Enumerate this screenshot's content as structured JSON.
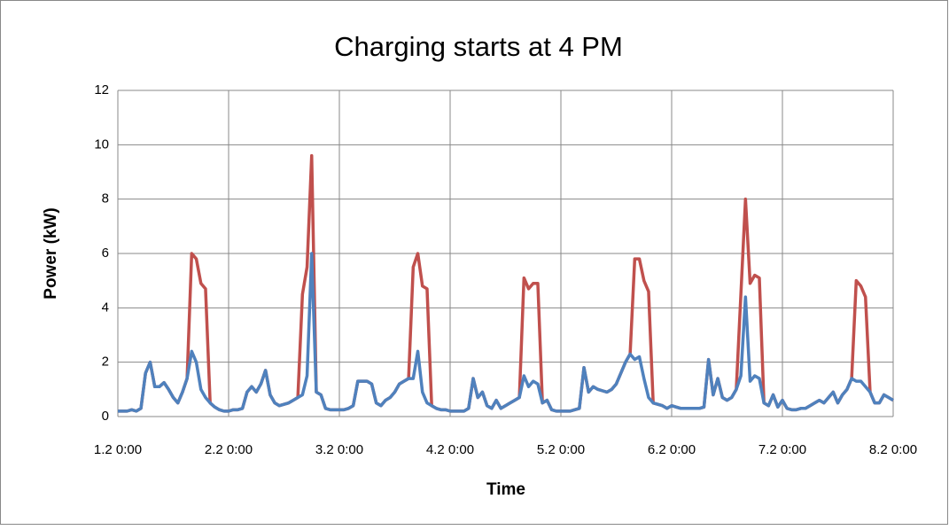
{
  "chart_data": {
    "type": "line",
    "title": "Charging starts at 4 PM",
    "xlabel": "Time",
    "ylabel": "Power (kW)",
    "xlim": [
      0,
      168
    ],
    "ylim": [
      0,
      12
    ],
    "yticks": [
      0,
      2,
      4,
      6,
      8,
      10,
      12
    ],
    "xticks": [
      {
        "value": 0,
        "label": "1.2 0:00"
      },
      {
        "value": 24,
        "label": "2.2 0:00"
      },
      {
        "value": 48,
        "label": "3.2 0:00"
      },
      {
        "value": 72,
        "label": "4.2 0:00"
      },
      {
        "value": 96,
        "label": "5.2 0:00"
      },
      {
        "value": 120,
        "label": "6.2 0:00"
      },
      {
        "value": 144,
        "label": "7.2 0:00"
      },
      {
        "value": 168,
        "label": "8.2 0:00"
      }
    ],
    "grid": true,
    "x": [
      0,
      1,
      2,
      3,
      4,
      5,
      6,
      7,
      8,
      9,
      10,
      11,
      12,
      13,
      14,
      15,
      16,
      17,
      18,
      19,
      20,
      21,
      22,
      23,
      24,
      25,
      26,
      27,
      28,
      29,
      30,
      31,
      32,
      33,
      34,
      35,
      36,
      37,
      38,
      39,
      40,
      41,
      42,
      43,
      44,
      45,
      46,
      47,
      48,
      49,
      50,
      51,
      52,
      53,
      54,
      55,
      56,
      57,
      58,
      59,
      60,
      61,
      62,
      63,
      64,
      65,
      66,
      67,
      68,
      69,
      70,
      71,
      72,
      73,
      74,
      75,
      76,
      77,
      78,
      79,
      80,
      81,
      82,
      83,
      84,
      85,
      86,
      87,
      88,
      89,
      90,
      91,
      92,
      93,
      94,
      95,
      96,
      97,
      98,
      99,
      100,
      101,
      102,
      103,
      104,
      105,
      106,
      107,
      108,
      109,
      110,
      111,
      112,
      113,
      114,
      115,
      116,
      117,
      118,
      119,
      120,
      121,
      122,
      123,
      124,
      125,
      126,
      127,
      128,
      129,
      130,
      131,
      132,
      133,
      134,
      135,
      136,
      137,
      138,
      139,
      140,
      141,
      142,
      143,
      144,
      145,
      146,
      147,
      148,
      149,
      150,
      151,
      152,
      153,
      154,
      155,
      156,
      157,
      158,
      159,
      160,
      161,
      162,
      163,
      164,
      165,
      166,
      167,
      168
    ],
    "series": [
      {
        "color": "#c0504d",
        "values": [
          0.2,
          0.2,
          0.2,
          0.25,
          0.2,
          0.3,
          1.6,
          2.0,
          1.1,
          1.1,
          1.25,
          1.0,
          0.7,
          0.5,
          0.9,
          1.4,
          6.0,
          5.8,
          4.9,
          4.7,
          0.5,
          0.35,
          0.25,
          0.2,
          0.2,
          0.25,
          0.25,
          0.3,
          0.9,
          1.1,
          0.9,
          1.2,
          1.7,
          0.8,
          0.5,
          0.4,
          0.45,
          0.5,
          0.6,
          0.7,
          4.5,
          5.5,
          9.6,
          0.9,
          0.8,
          0.3,
          0.25,
          0.25,
          0.25,
          0.25,
          0.3,
          0.4,
          1.3,
          1.3,
          1.3,
          1.2,
          0.5,
          0.4,
          0.6,
          0.7,
          0.9,
          1.2,
          1.3,
          1.4,
          5.5,
          6.0,
          4.8,
          4.7,
          0.4,
          0.3,
          0.25,
          0.25,
          0.2,
          0.2,
          0.2,
          0.2,
          0.3,
          1.4,
          0.7,
          0.9,
          0.4,
          0.3,
          0.6,
          0.3,
          0.4,
          0.5,
          0.6,
          0.7,
          5.1,
          4.7,
          4.9,
          4.9,
          0.5,
          0.6,
          0.25,
          0.2,
          0.2,
          0.2,
          0.2,
          0.25,
          0.3,
          1.8,
          0.9,
          1.1,
          1.0,
          0.95,
          0.9,
          1.0,
          1.2,
          1.6,
          2.0,
          2.3,
          5.8,
          5.8,
          5.0,
          4.6,
          0.5,
          0.45,
          0.4,
          0.3,
          0.4,
          0.35,
          0.3,
          0.3,
          0.3,
          0.3,
          0.3,
          0.35,
          2.1,
          0.8,
          1.4,
          0.7,
          0.6,
          0.7,
          1.0,
          4.5,
          8.0,
          4.9,
          5.2,
          5.1,
          0.5,
          0.4,
          0.8,
          0.35,
          0.6,
          0.3,
          0.25,
          0.25,
          0.3,
          0.3,
          0.4,
          0.5,
          0.6,
          0.5,
          0.7,
          0.9,
          0.5,
          0.8,
          1.0,
          1.4,
          5.0,
          4.8,
          4.4,
          0.9,
          0.5,
          0.5,
          0.8,
          0.7,
          0.6
        ]
      },
      {
        "color": "#4f81bd",
        "values": [
          0.2,
          0.2,
          0.2,
          0.25,
          0.2,
          0.3,
          1.6,
          2.0,
          1.1,
          1.1,
          1.25,
          1.0,
          0.7,
          0.5,
          0.9,
          1.4,
          2.4,
          2.0,
          1.0,
          0.7,
          0.5,
          0.35,
          0.25,
          0.2,
          0.2,
          0.25,
          0.25,
          0.3,
          0.9,
          1.1,
          0.9,
          1.2,
          1.7,
          0.8,
          0.5,
          0.4,
          0.45,
          0.5,
          0.6,
          0.7,
          0.8,
          1.5,
          6.0,
          0.9,
          0.8,
          0.3,
          0.25,
          0.25,
          0.25,
          0.25,
          0.3,
          0.4,
          1.3,
          1.3,
          1.3,
          1.2,
          0.5,
          0.4,
          0.6,
          0.7,
          0.9,
          1.2,
          1.3,
          1.4,
          1.4,
          2.4,
          0.9,
          0.5,
          0.4,
          0.3,
          0.25,
          0.25,
          0.2,
          0.2,
          0.2,
          0.2,
          0.3,
          1.4,
          0.7,
          0.9,
          0.4,
          0.3,
          0.6,
          0.3,
          0.4,
          0.5,
          0.6,
          0.7,
          1.5,
          1.1,
          1.3,
          1.2,
          0.5,
          0.6,
          0.25,
          0.2,
          0.2,
          0.2,
          0.2,
          0.25,
          0.3,
          1.8,
          0.9,
          1.1,
          1.0,
          0.95,
          0.9,
          1.0,
          1.2,
          1.6,
          2.0,
          2.3,
          2.1,
          2.2,
          1.4,
          0.7,
          0.5,
          0.45,
          0.4,
          0.3,
          0.4,
          0.35,
          0.3,
          0.3,
          0.3,
          0.3,
          0.3,
          0.35,
          2.1,
          0.8,
          1.4,
          0.7,
          0.6,
          0.7,
          1.0,
          1.5,
          4.4,
          1.3,
          1.5,
          1.4,
          0.5,
          0.4,
          0.8,
          0.35,
          0.6,
          0.3,
          0.25,
          0.25,
          0.3,
          0.3,
          0.4,
          0.5,
          0.6,
          0.5,
          0.7,
          0.9,
          0.5,
          0.8,
          1.0,
          1.4,
          1.3,
          1.3,
          1.1,
          0.9,
          0.5,
          0.5,
          0.8,
          0.7,
          0.6
        ]
      }
    ]
  }
}
